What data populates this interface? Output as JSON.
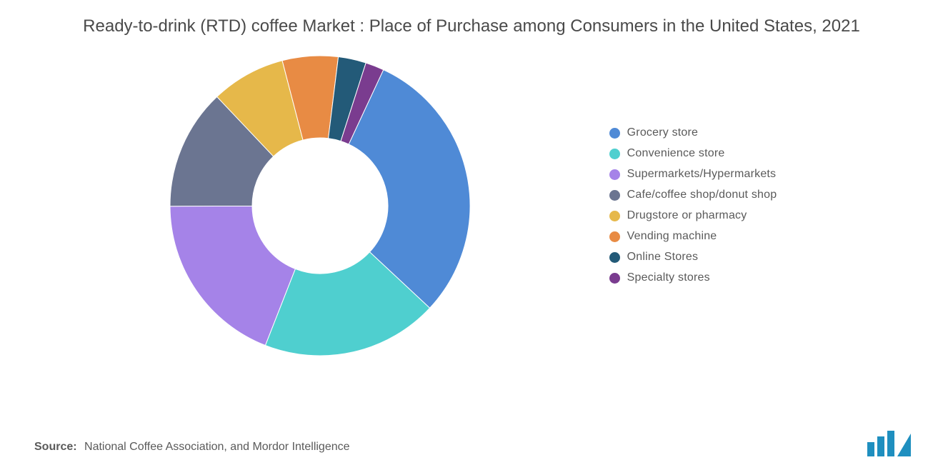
{
  "title": "Ready-to-drink (RTD) coffee Market : Place of Purchase among Consumers in the United States, 2021",
  "source_label": "Source:",
  "source_text": "National Coffee Association, and Mordor Intelligence",
  "chart": {
    "type": "donut",
    "start_angle_deg": 25,
    "outer_radius": 210,
    "inner_radius": 95,
    "background_color": "#ffffff",
    "title_fontsize": 24,
    "title_color": "#4a4a4a",
    "legend_fontsize": 16,
    "legend_color": "#5a5a5a",
    "slices": [
      {
        "label": "Grocery store",
        "value": 30.0,
        "color": "#4f8ad6"
      },
      {
        "label": "Convenience store",
        "value": 19.0,
        "color": "#4fcfcf"
      },
      {
        "label": "Supermarkets/Hypermarkets",
        "value": 19.0,
        "color": "#a583e8"
      },
      {
        "label": "Cafe/coffee shop/donut shop",
        "value": 13.0,
        "color": "#6b7591"
      },
      {
        "label": "Drugstore or pharmacy",
        "value": 8.0,
        "color": "#e6b84a"
      },
      {
        "label": "Vending machine",
        "value": 6.0,
        "color": "#e88b44"
      },
      {
        "label": "Online Stores",
        "value": 3.0,
        "color": "#235a78"
      },
      {
        "label": "Specialty stores",
        "value": 2.0,
        "color": "#7a3c8f"
      }
    ]
  },
  "logo": {
    "bar_color": "#1f8fbf",
    "triangle_color": "#1f8fbf"
  }
}
